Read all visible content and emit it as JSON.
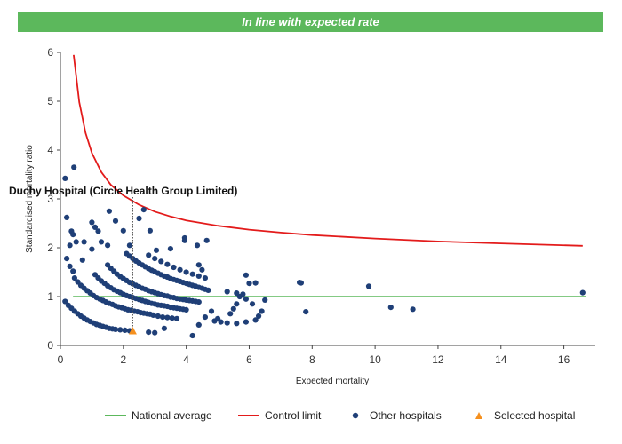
{
  "banner": "In line with expected rate",
  "chart_data": {
    "type": "scatter",
    "title": "",
    "xlabel": "Expected mortality",
    "ylabel": "Standardised mortality ratio",
    "xlim": [
      0,
      17
    ],
    "ylim": [
      0,
      6
    ],
    "xticks": [
      0,
      2,
      4,
      6,
      8,
      10,
      12,
      14,
      16
    ],
    "yticks": [
      0,
      1,
      2,
      3,
      4,
      5,
      6
    ],
    "grid": false,
    "legend_position": "bottom",
    "national_average": {
      "name": "National average",
      "value": 1,
      "x_range": [
        0.4,
        16.7
      ],
      "color": "#5cb85c"
    },
    "control_limit": {
      "name": "Control limit",
      "color": "#e31b1b",
      "x": [
        0.42,
        0.6,
        0.8,
        1.0,
        1.3,
        1.6,
        2.0,
        2.5,
        3.0,
        3.5,
        4.0,
        5.0,
        6.0,
        7.0,
        8.0,
        10.0,
        12.0,
        14.0,
        16.6
      ],
      "y": [
        5.95,
        4.98,
        4.35,
        3.94,
        3.55,
        3.29,
        3.07,
        2.88,
        2.74,
        2.64,
        2.56,
        2.45,
        2.37,
        2.31,
        2.26,
        2.19,
        2.13,
        2.09,
        2.04
      ]
    },
    "series": [
      {
        "name": "Other hospitals",
        "marker": "circle",
        "color": "#1f3f77",
        "points": [
          [
            0.15,
            3.42
          ],
          [
            0.43,
            3.65
          ],
          [
            0.2,
            2.62
          ],
          [
            0.35,
            2.34
          ],
          [
            0.4,
            2.27
          ],
          [
            0.5,
            2.12
          ],
          [
            0.3,
            2.05
          ],
          [
            0.75,
            2.12
          ],
          [
            1.0,
            2.52
          ],
          [
            1.1,
            2.42
          ],
          [
            1.2,
            2.34
          ],
          [
            1.3,
            2.12
          ],
          [
            0.2,
            1.78
          ],
          [
            0.3,
            1.62
          ],
          [
            0.4,
            1.52
          ],
          [
            0.7,
            1.75
          ],
          [
            1.0,
            1.97
          ],
          [
            1.5,
            2.05
          ],
          [
            1.55,
            2.75
          ],
          [
            1.75,
            2.55
          ],
          [
            2.0,
            2.35
          ],
          [
            2.2,
            2.05
          ],
          [
            2.5,
            2.6
          ],
          [
            2.65,
            2.78
          ],
          [
            2.85,
            2.35
          ],
          [
            3.05,
            1.95
          ],
          [
            3.5,
            1.98
          ],
          [
            3.95,
            2.15
          ],
          [
            4.35,
            2.05
          ],
          [
            4.65,
            2.15
          ],
          [
            3.95,
            2.2
          ],
          [
            0.15,
            0.9
          ],
          [
            0.25,
            0.82
          ],
          [
            0.35,
            0.76
          ],
          [
            0.45,
            0.7
          ],
          [
            0.55,
            0.65
          ],
          [
            0.65,
            0.6
          ],
          [
            0.75,
            0.56
          ],
          [
            0.85,
            0.52
          ],
          [
            0.95,
            0.49
          ],
          [
            1.05,
            0.46
          ],
          [
            1.15,
            0.43
          ],
          [
            1.25,
            0.41
          ],
          [
            1.35,
            0.39
          ],
          [
            1.45,
            0.37
          ],
          [
            1.55,
            0.35
          ],
          [
            1.65,
            0.34
          ],
          [
            1.75,
            0.33
          ],
          [
            1.9,
            0.32
          ],
          [
            2.05,
            0.31
          ],
          [
            2.2,
            0.3
          ],
          [
            0.45,
            1.38
          ],
          [
            0.55,
            1.3
          ],
          [
            0.65,
            1.23
          ],
          [
            0.75,
            1.17
          ],
          [
            0.85,
            1.12
          ],
          [
            0.95,
            1.07
          ],
          [
            1.05,
            1.02
          ],
          [
            1.15,
            0.98
          ],
          [
            1.25,
            0.95
          ],
          [
            1.35,
            0.92
          ],
          [
            1.45,
            0.89
          ],
          [
            1.55,
            0.86
          ],
          [
            1.65,
            0.84
          ],
          [
            1.75,
            0.81
          ],
          [
            1.85,
            0.79
          ],
          [
            1.95,
            0.77
          ],
          [
            2.05,
            0.75
          ],
          [
            2.15,
            0.73
          ],
          [
            2.25,
            0.72
          ],
          [
            2.35,
            0.7
          ],
          [
            2.45,
            0.69
          ],
          [
            2.55,
            0.67
          ],
          [
            2.65,
            0.66
          ],
          [
            2.75,
            0.65
          ],
          [
            2.85,
            0.64
          ],
          [
            2.95,
            0.62
          ],
          [
            3.1,
            0.6
          ],
          [
            3.25,
            0.58
          ],
          [
            3.4,
            0.57
          ],
          [
            3.55,
            0.56
          ],
          [
            3.7,
            0.55
          ],
          [
            1.1,
            1.45
          ],
          [
            1.2,
            1.38
          ],
          [
            1.3,
            1.32
          ],
          [
            1.4,
            1.27
          ],
          [
            1.5,
            1.22
          ],
          [
            1.6,
            1.18
          ],
          [
            1.7,
            1.14
          ],
          [
            1.8,
            1.11
          ],
          [
            1.9,
            1.08
          ],
          [
            2.0,
            1.05
          ],
          [
            2.1,
            1.02
          ],
          [
            2.2,
            1.0
          ],
          [
            2.3,
            0.98
          ],
          [
            2.4,
            0.96
          ],
          [
            2.5,
            0.94
          ],
          [
            2.6,
            0.92
          ],
          [
            2.7,
            0.9
          ],
          [
            2.8,
            0.88
          ],
          [
            2.9,
            0.86
          ],
          [
            3.0,
            0.85
          ],
          [
            3.1,
            0.83
          ],
          [
            3.2,
            0.82
          ],
          [
            3.3,
            0.81
          ],
          [
            3.4,
            0.8
          ],
          [
            3.5,
            0.78
          ],
          [
            3.6,
            0.77
          ],
          [
            3.7,
            0.76
          ],
          [
            3.8,
            0.75
          ],
          [
            3.9,
            0.74
          ],
          [
            4.0,
            0.73
          ],
          [
            1.5,
            1.65
          ],
          [
            1.6,
            1.58
          ],
          [
            1.7,
            1.52
          ],
          [
            1.8,
            1.46
          ],
          [
            1.9,
            1.41
          ],
          [
            2.0,
            1.37
          ],
          [
            2.1,
            1.33
          ],
          [
            2.2,
            1.29
          ],
          [
            2.3,
            1.26
          ],
          [
            2.4,
            1.23
          ],
          [
            2.5,
            1.2
          ],
          [
            2.6,
            1.17
          ],
          [
            2.7,
            1.15
          ],
          [
            2.8,
            1.12
          ],
          [
            2.9,
            1.1
          ],
          [
            3.0,
            1.08
          ],
          [
            3.1,
            1.06
          ],
          [
            3.2,
            1.04
          ],
          [
            3.3,
            1.02
          ],
          [
            3.4,
            1.01
          ],
          [
            3.5,
            0.99
          ],
          [
            3.6,
            0.98
          ],
          [
            3.7,
            0.96
          ],
          [
            3.8,
            0.95
          ],
          [
            3.9,
            0.94
          ],
          [
            4.0,
            0.93
          ],
          [
            4.1,
            0.92
          ],
          [
            4.2,
            0.91
          ],
          [
            4.3,
            0.9
          ],
          [
            4.4,
            0.89
          ],
          [
            2.1,
            1.88
          ],
          [
            2.2,
            1.83
          ],
          [
            2.3,
            1.78
          ],
          [
            2.4,
            1.73
          ],
          [
            2.5,
            1.69
          ],
          [
            2.6,
            1.65
          ],
          [
            2.7,
            1.61
          ],
          [
            2.8,
            1.57
          ],
          [
            2.9,
            1.54
          ],
          [
            3.0,
            1.51
          ],
          [
            3.1,
            1.48
          ],
          [
            3.2,
            1.45
          ],
          [
            3.3,
            1.42
          ],
          [
            3.4,
            1.4
          ],
          [
            3.5,
            1.37
          ],
          [
            3.6,
            1.35
          ],
          [
            3.7,
            1.33
          ],
          [
            3.8,
            1.31
          ],
          [
            3.9,
            1.29
          ],
          [
            4.0,
            1.27
          ],
          [
            4.1,
            1.25
          ],
          [
            4.2,
            1.23
          ],
          [
            4.3,
            1.21
          ],
          [
            4.4,
            1.19
          ],
          [
            4.5,
            1.17
          ],
          [
            4.6,
            1.15
          ],
          [
            4.7,
            1.13
          ],
          [
            2.8,
            1.85
          ],
          [
            3.0,
            1.78
          ],
          [
            3.2,
            1.72
          ],
          [
            3.4,
            1.66
          ],
          [
            3.6,
            1.6
          ],
          [
            3.8,
            1.55
          ],
          [
            4.0,
            1.5
          ],
          [
            4.2,
            1.46
          ],
          [
            4.4,
            1.42
          ],
          [
            4.6,
            1.38
          ],
          [
            4.4,
            1.65
          ],
          [
            4.5,
            1.55
          ],
          [
            2.8,
            0.27
          ],
          [
            3.0,
            0.26
          ],
          [
            3.3,
            0.35
          ],
          [
            4.2,
            0.2
          ],
          [
            4.4,
            0.42
          ],
          [
            4.9,
            0.5
          ],
          [
            5.1,
            0.48
          ],
          [
            5.3,
            0.46
          ],
          [
            5.6,
            0.45
          ],
          [
            5.9,
            0.48
          ],
          [
            6.2,
            0.52
          ],
          [
            5.0,
            0.55
          ],
          [
            4.6,
            0.58
          ],
          [
            4.8,
            0.7
          ],
          [
            5.4,
            0.65
          ],
          [
            5.5,
            0.75
          ],
          [
            5.6,
            0.85
          ],
          [
            5.7,
            1.0
          ],
          [
            5.9,
            0.95
          ],
          [
            6.0,
            1.27
          ],
          [
            6.1,
            0.85
          ],
          [
            6.2,
            1.28
          ],
          [
            6.3,
            0.6
          ],
          [
            6.4,
            0.7
          ],
          [
            6.5,
            0.93
          ],
          [
            5.3,
            1.1
          ],
          [
            5.6,
            1.07
          ],
          [
            5.8,
            1.05
          ],
          [
            5.9,
            1.44
          ],
          [
            7.6,
            1.29
          ],
          [
            7.65,
            1.28
          ],
          [
            7.8,
            0.69
          ],
          [
            9.8,
            1.21
          ],
          [
            10.5,
            0.78
          ],
          [
            11.2,
            0.74
          ],
          [
            16.6,
            1.08
          ]
        ]
      },
      {
        "name": "Selected hospital",
        "marker": "triangle",
        "color": "#f5901e",
        "points": [
          [
            2.3,
            0.29
          ]
        ],
        "label": "Duchy Hospital (Circle Health Group Limited)"
      }
    ]
  }
}
